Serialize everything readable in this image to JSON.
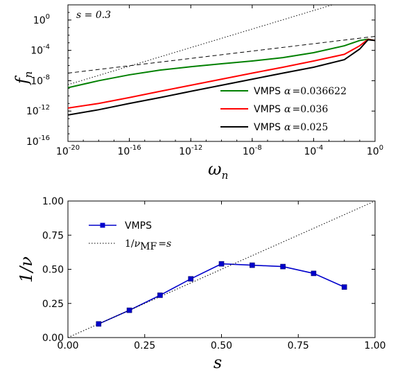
{
  "chart_data": [
    {
      "type": "line",
      "panel": "top",
      "annotation": "s = 0.3",
      "xlabel": "ω",
      "xlabel_sub": "n",
      "ylabel": "f",
      "ylabel_sub": "n",
      "x_scale": "log",
      "y_scale": "log",
      "xlim": [
        1e-20,
        1
      ],
      "ylim": [
        1e-16,
        100.0
      ],
      "x_ticks": [
        {
          "base": "10",
          "exp": "-20",
          "value": 1e-20
        },
        {
          "base": "10",
          "exp": "-16",
          "value": 1e-16
        },
        {
          "base": "10",
          "exp": "-12",
          "value": 1e-12
        },
        {
          "base": "10",
          "exp": "-8",
          "value": 1e-08
        },
        {
          "base": "10",
          "exp": "-4",
          "value": 0.0001
        },
        {
          "base": "10",
          "exp": "0",
          "value": 1
        }
      ],
      "y_ticks": [
        {
          "base": "10",
          "exp": "-16",
          "value": 1e-16
        },
        {
          "base": "10",
          "exp": "-12",
          "value": 1e-12
        },
        {
          "base": "10",
          "exp": "-8",
          "value": 1e-08
        },
        {
          "base": "10",
          "exp": "-4",
          "value": 0.0001
        },
        {
          "base": "10",
          "exp": "0",
          "value": 1
        }
      ],
      "legend_position": "lower-right",
      "series": [
        {
          "name": "VMPS",
          "alpha_label": "α = 0.036622",
          "color": "#008000",
          "style": "solid",
          "x": [
            1e-20,
            1e-18,
            1e-16,
            1e-14,
            1e-12,
            1e-10,
            1e-08,
            1e-06,
            0.0001,
            0.01,
            0.1,
            0.35,
            1
          ],
          "y": [
            1.2e-09,
            1e-08,
            6e-08,
            2.5e-07,
            7e-07,
            1.7e-06,
            4e-06,
            1.1e-05,
            5e-05,
            0.0004,
            0.002,
            0.003,
            0.002
          ]
        },
        {
          "name": "VMPS",
          "alpha_label": "α = 0.036",
          "color": "#ff0000",
          "style": "solid",
          "x": [
            1e-20,
            1e-18,
            1e-16,
            1e-14,
            1e-12,
            1e-10,
            1e-08,
            1e-06,
            0.0001,
            0.01,
            0.1,
            0.35,
            1
          ],
          "y": [
            2.5e-12,
            1e-11,
            6e-11,
            4e-10,
            2.5e-09,
            1.6e-08,
            1e-07,
            6e-07,
            4e-06,
            3e-05,
            0.0004,
            0.0028,
            0.002
          ]
        },
        {
          "name": "VMPS",
          "alpha_label": "α = 0.025",
          "color": "#000000",
          "style": "solid",
          "x": [
            1e-20,
            1e-18,
            1e-16,
            1e-14,
            1e-12,
            1e-10,
            1e-08,
            1e-06,
            0.0001,
            0.01,
            0.1,
            0.35,
            1
          ],
          "y": [
            3e-13,
            1.5e-12,
            1e-11,
            6e-11,
            4e-10,
            2.5e-09,
            1.6e-08,
            1e-07,
            6e-07,
            6e-06,
            0.00015,
            0.0025,
            0.002
          ]
        },
        {
          "name": "",
          "color": "#000000",
          "style": "dashed",
          "x": [
            1e-20,
            1
          ],
          "y": [
            1e-07,
            0.007
          ]
        },
        {
          "name": "",
          "color": "#000000",
          "style": "dotted",
          "x": [
            1e-20,
            0.01
          ],
          "y": [
            3e-09,
            300.0
          ]
        }
      ]
    },
    {
      "type": "line",
      "panel": "bottom",
      "xlabel": "s",
      "ylabel": "1/ν",
      "xlim": [
        0,
        1
      ],
      "ylim": [
        0,
        1
      ],
      "x_ticks": [
        "0.00",
        "0.25",
        "0.50",
        "0.75",
        "1.00"
      ],
      "y_ticks": [
        "0.00",
        "0.25",
        "0.50",
        "0.75",
        "1.00"
      ],
      "legend_position": "top-left",
      "series": [
        {
          "name": "VMPS",
          "color": "#0000cc",
          "style": "solid-square-markers",
          "x": [
            0.1,
            0.2,
            0.3,
            0.4,
            0.5,
            0.6,
            0.7,
            0.8,
            0.9
          ],
          "y": [
            0.1,
            0.2,
            0.31,
            0.43,
            0.54,
            0.53,
            0.52,
            0.47,
            0.37
          ]
        },
        {
          "name": "1/ν_MF = s",
          "color": "#000000",
          "style": "dotted",
          "x": [
            0,
            1
          ],
          "y": [
            0,
            1
          ]
        }
      ]
    }
  ]
}
